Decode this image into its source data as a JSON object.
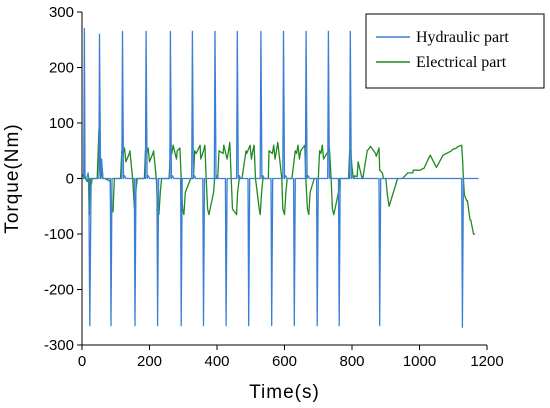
{
  "chart_data": {
    "type": "line",
    "title": "",
    "xlabel": "Time(s)",
    "ylabel": "Torque(Nm)",
    "xlim": [
      0,
      1200
    ],
    "ylim": [
      -300,
      300
    ],
    "xticks": [
      "0",
      "200",
      "400",
      "600",
      "800",
      "1000",
      "1200"
    ],
    "yticks": [
      "300",
      "200",
      "100",
      "0",
      "-100",
      "-200",
      "-300"
    ],
    "legend_position": "top-right",
    "series": [
      {
        "name": "Hydraulic part",
        "color": "#3b7fd4",
        "x": [
          0,
          5,
          7,
          9,
          14,
          18,
          20,
          23,
          27,
          50,
          52,
          55,
          58,
          62,
          84,
          86,
          89,
          93,
          118,
          120,
          123,
          126,
          130,
          155,
          157,
          160,
          164,
          188,
          190,
          193,
          196,
          200,
          222,
          224,
          227,
          231,
          260,
          262,
          265,
          268,
          272,
          292,
          294,
          297,
          301,
          325,
          327,
          330,
          333,
          337,
          358,
          360,
          363,
          367,
          392,
          394,
          397,
          400,
          404,
          425,
          427,
          430,
          434,
          458,
          460,
          463,
          466,
          470,
          492,
          494,
          497,
          501,
          528,
          530,
          533,
          536,
          540,
          560,
          562,
          565,
          569,
          595,
          597,
          600,
          603,
          607,
          627,
          629,
          632,
          636,
          662,
          664,
          667,
          670,
          674,
          695,
          697,
          700,
          704,
          728,
          730,
          733,
          736,
          740,
          760,
          762,
          765,
          769,
          793,
          795,
          798,
          801,
          805,
          880,
          882,
          885,
          888,
          1100,
          1125,
          1127,
          1130,
          1133,
          1175
        ],
        "values": [
          0,
          0,
          270,
          0,
          0,
          10,
          0,
          -265,
          0,
          0,
          260,
          0,
          35,
          0,
          0,
          -265,
          0,
          0,
          0,
          265,
          0,
          5,
          0,
          0,
          -265,
          0,
          0,
          0,
          265,
          0,
          5,
          0,
          0,
          -265,
          0,
          0,
          0,
          265,
          0,
          5,
          0,
          0,
          -265,
          0,
          0,
          0,
          265,
          0,
          5,
          0,
          0,
          -265,
          0,
          0,
          0,
          265,
          0,
          5,
          0,
          0,
          -265,
          0,
          0,
          0,
          265,
          0,
          5,
          0,
          0,
          -265,
          0,
          0,
          0,
          265,
          0,
          5,
          0,
          0,
          -265,
          0,
          0,
          0,
          265,
          0,
          5,
          0,
          0,
          -265,
          0,
          0,
          0,
          265,
          0,
          5,
          0,
          0,
          -265,
          0,
          0,
          0,
          265,
          0,
          5,
          0,
          0,
          -265,
          0,
          0,
          0,
          265,
          0,
          5,
          0,
          0,
          -265,
          0,
          0,
          0,
          0,
          -268,
          0,
          0,
          0
        ]
      },
      {
        "name": "Electrical part",
        "color": "#1f8a1f",
        "x": [
          0,
          6,
          8,
          10,
          15,
          19,
          22,
          24,
          28,
          30,
          45,
          50,
          52,
          56,
          60,
          62,
          68,
          84,
          86,
          88,
          92,
          96,
          112,
          114,
          118,
          122,
          126,
          130,
          140,
          142,
          150,
          155,
          157,
          160,
          164,
          168,
          185,
          188,
          192,
          196,
          200,
          210,
          212,
          220,
          224,
          228,
          232,
          236,
          255,
          258,
          262,
          266,
          270,
          280,
          282,
          290,
          294,
          298,
          302,
          306,
          322,
          325,
          330,
          334,
          338,
          350,
          352,
          360,
          364,
          368,
          372,
          376,
          390,
          393,
          398,
          402,
          406,
          418,
          420,
          430,
          434,
          438,
          442,
          446,
          458,
          461,
          466,
          470,
          474,
          486,
          488,
          498,
          502,
          506,
          510,
          514,
          525,
          528,
          532,
          536,
          540,
          552,
          554,
          564,
          568,
          572,
          576,
          580,
          592,
          595,
          600,
          604,
          608,
          620,
          622,
          632,
          636,
          640,
          644,
          648,
          660,
          663,
          668,
          672,
          676,
          688,
          690,
          700,
          704,
          708,
          712,
          716,
          730,
          733,
          738,
          742,
          746,
          760,
          762,
          770,
          790,
          793,
          797,
          800,
          804,
          806,
          808,
          815,
          818,
          830,
          832,
          845,
          848,
          855,
          858,
          870,
          872,
          880,
          882,
          890,
          893,
          896,
          900,
          905,
          910,
          935,
          950,
          965,
          967,
          980,
          982,
          1000,
          1002,
          1010,
          1013,
          1030,
          1032,
          1050,
          1052,
          1068,
          1070,
          1095,
          1097,
          1110,
          1112,
          1125,
          1128,
          1130,
          1133,
          1140,
          1142,
          1150,
          1152,
          1160,
          1165
        ],
        "values": [
          0,
          10,
          8,
          0,
          -5,
          0,
          -65,
          0,
          -10,
          0,
          0,
          88,
          30,
          0,
          15,
          0,
          0,
          -5,
          -70,
          -55,
          -60,
          0,
          0,
          0,
          50,
          45,
          55,
          30,
          45,
          50,
          0,
          -50,
          -60,
          -20,
          0,
          0,
          0,
          50,
          45,
          55,
          30,
          45,
          50,
          0,
          -55,
          -65,
          -25,
          0,
          0,
          0,
          50,
          45,
          60,
          35,
          50,
          55,
          0,
          -55,
          -65,
          -25,
          0,
          0,
          0,
          50,
          45,
          60,
          35,
          50,
          60,
          0,
          -55,
          -65,
          -25,
          0,
          0,
          0,
          50,
          45,
          60,
          35,
          50,
          65,
          0,
          -55,
          -65,
          -25,
          0,
          0,
          0,
          50,
          45,
          60,
          35,
          50,
          60,
          0,
          -55,
          -65,
          -25,
          0,
          0,
          0,
          50,
          45,
          60,
          35,
          50,
          65,
          0,
          -55,
          -65,
          -25,
          0,
          0,
          0,
          50,
          45,
          60,
          35,
          50,
          60,
          0,
          -55,
          -65,
          -25,
          0,
          0,
          0,
          50,
          45,
          60,
          35,
          50,
          55,
          0,
          -55,
          -65,
          -25,
          0,
          0,
          0,
          50,
          45,
          20,
          0,
          0,
          5,
          3,
          30,
          0,
          0,
          50,
          52,
          58,
          55,
          45,
          40,
          55,
          15,
          10,
          0,
          0,
          0,
          -30,
          -50,
          0,
          0,
          10,
          10,
          10,
          15,
          15,
          15,
          18,
          18,
          40,
          42,
          20,
          22,
          40,
          42,
          50,
          52,
          55,
          57,
          60,
          30,
          0,
          -30,
          -40,
          -40,
          -75,
          -75,
          -100,
          -100
        ]
      }
    ]
  }
}
